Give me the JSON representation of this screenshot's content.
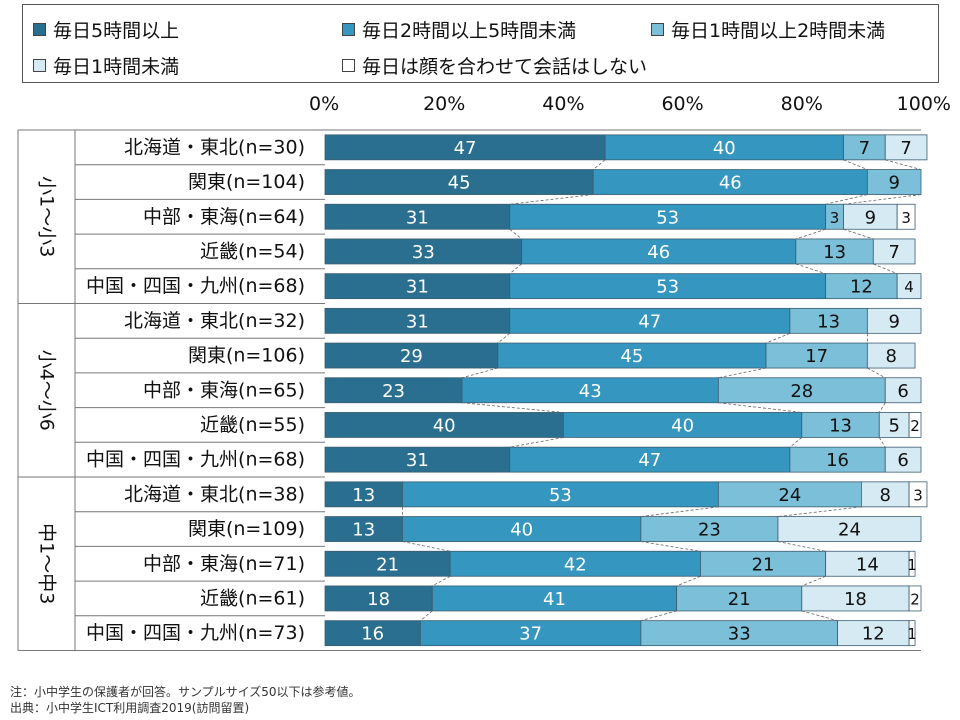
{
  "chart_data": {
    "type": "bar",
    "orientation": "horizontal",
    "stacked": true,
    "xlim": [
      0,
      100
    ],
    "xticks": [
      "0%",
      "20%",
      "40%",
      "60%",
      "80%",
      "100%"
    ],
    "legend_position": "top",
    "series": [
      {
        "name": "毎日5時間以上",
        "color": "#2a6f8f"
      },
      {
        "name": "毎日2時間以上5時間未満",
        "color": "#3596bf"
      },
      {
        "name": "毎日1時間以上2時間未満",
        "color": "#7bbfd9"
      },
      {
        "name": "毎日1時間未満",
        "color": "#d6eaf3"
      },
      {
        "name": "毎日は顔を合わせて会話はしない",
        "color": "#ffffff"
      }
    ],
    "groups": [
      {
        "label": "小1～小3",
        "rows": [
          {
            "label": "北海道・東北(n=30)",
            "values": [
              47,
              40,
              7,
              7,
              0
            ]
          },
          {
            "label": "関東(n=104)",
            "values": [
              45,
              46,
              9,
              0,
              0
            ]
          },
          {
            "label": "中部・東海(n=64)",
            "values": [
              31,
              53,
              3,
              9,
              3
            ]
          },
          {
            "label": "近畿(n=54)",
            "values": [
              33,
              46,
              13,
              7,
              0
            ]
          },
          {
            "label": "中国・四国・九州(n=68)",
            "values": [
              31,
              53,
              12,
              4,
              0
            ]
          }
        ]
      },
      {
        "label": "小4～小6",
        "rows": [
          {
            "label": "北海道・東北(n=32)",
            "values": [
              31,
              47,
              13,
              9,
              0
            ]
          },
          {
            "label": "関東(n=106)",
            "values": [
              29,
              45,
              17,
              8,
              0
            ]
          },
          {
            "label": "中部・東海(n=65)",
            "values": [
              23,
              43,
              28,
              6,
              0
            ]
          },
          {
            "label": "近畿(n=55)",
            "values": [
              40,
              40,
              13,
              5,
              2
            ]
          },
          {
            "label": "中国・四国・九州(n=68)",
            "values": [
              31,
              47,
              16,
              6,
              0
            ]
          }
        ]
      },
      {
        "label": "中1～中3",
        "rows": [
          {
            "label": "北海道・東北(n=38)",
            "values": [
              13,
              53,
              24,
              8,
              3
            ]
          },
          {
            "label": "関東(n=109)",
            "values": [
              13,
              40,
              23,
              24,
              0
            ]
          },
          {
            "label": "中部・東海(n=71)",
            "values": [
              21,
              42,
              21,
              14,
              1
            ]
          },
          {
            "label": "近畿(n=61)",
            "values": [
              18,
              41,
              21,
              18,
              2
            ]
          },
          {
            "label": "中国・四国・九州(n=73)",
            "values": [
              16,
              37,
              33,
              12,
              1
            ]
          }
        ]
      }
    ]
  },
  "notes": {
    "note": "注：小中学生の保護者が回答。サンプルサイズ50以下は参考値。",
    "source": "出典：小中学生ICT利用調査2019(訪問留置)"
  }
}
